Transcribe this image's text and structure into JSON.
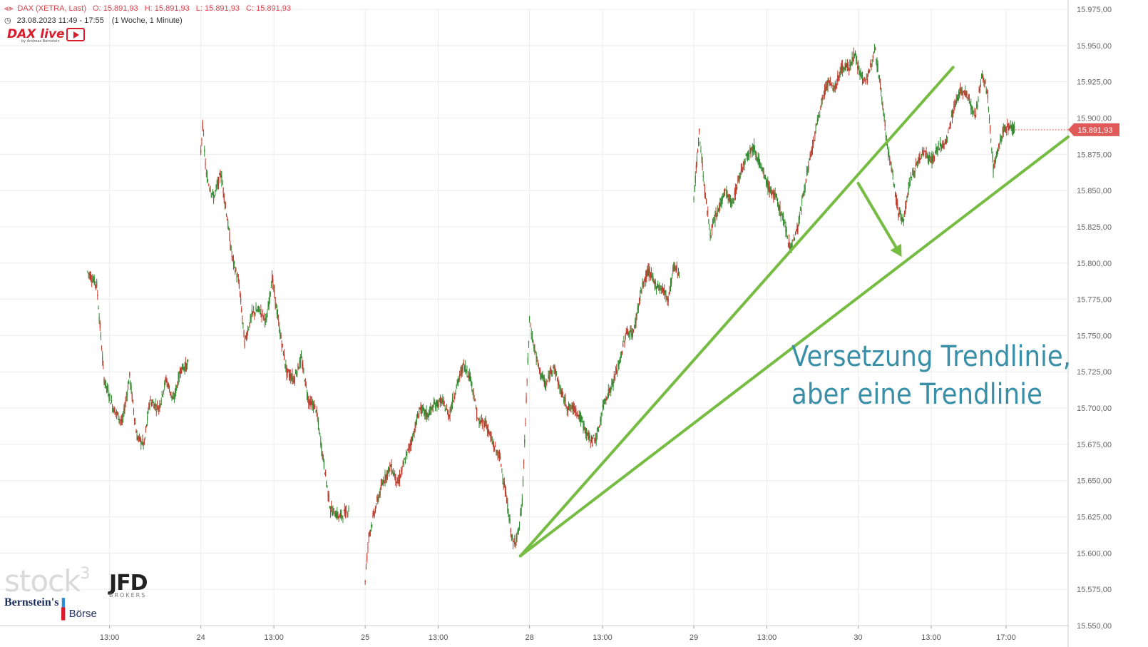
{
  "header": {
    "instrument": "DAX (XETRA, Last)",
    "ohlc": [
      "O: 15.891,93",
      "H: 15.891,93",
      "L: 15.891,93",
      "C: 15.891,93"
    ],
    "period": "23.08.2023 11:49 - 17:55",
    "interval": "(1 Woche, 1 Minute)",
    "clock_icon": "clock-icon",
    "candle_icon": "candlestick-icon"
  },
  "branding": {
    "dax_live": "DAX live",
    "dax_live_sub": "by Andreas Bernstein",
    "stock3": "stock",
    "stock3_sup": "3",
    "jfd": "JFD",
    "jfd_sub": "BROKERS",
    "bernstein": "Bernstein's",
    "boerse": "Börse"
  },
  "chart_data": {
    "type": "candlestick",
    "title": "",
    "ylim": [
      15550,
      15975
    ],
    "y_ticks": [
      "15.975,00",
      "15.950,00",
      "15.925,00",
      "15.900,00",
      "15.875,00",
      "15.850,00",
      "15.825,00",
      "15.800,00",
      "15.775,00",
      "15.750,00",
      "15.725,00",
      "15.700,00",
      "15.675,00",
      "15.650,00",
      "15.625,00",
      "15.600,00",
      "15.575,00",
      "15.550,00"
    ],
    "x_ticks": [
      {
        "label": "13:00",
        "t": 6.0
      },
      {
        "label": "24",
        "t": 11.0
      },
      {
        "label": "13:00",
        "t": 15.0
      },
      {
        "label": "25",
        "t": 20.0
      },
      {
        "label": "13:00",
        "t": 24.0
      },
      {
        "label": "28",
        "t": 29.0
      },
      {
        "label": "13:00",
        "t": 33.0
      },
      {
        "label": "29",
        "t": 38.0
      },
      {
        "label": "13:00",
        "t": 42.0
      },
      {
        "label": "30",
        "t": 47.0
      },
      {
        "label": "13:00",
        "t": 51.0
      },
      {
        "label": "17:00",
        "t": 55.1
      }
    ],
    "last_price": 15891.93,
    "last_price_label": "15.891,93",
    "up_color": "#2e8b2e",
    "down_color": "#c0392b",
    "trendline_color": "#76bc43",
    "annotation_color": "#3a8fa8",
    "price_path": [
      {
        "t": 4.8,
        "v": 15794
      },
      {
        "t": 5.3,
        "v": 15785
      },
      {
        "t": 5.7,
        "v": 15720
      },
      {
        "t": 6.2,
        "v": 15700
      },
      {
        "t": 6.7,
        "v": 15690
      },
      {
        "t": 7.1,
        "v": 15722
      },
      {
        "t": 7.5,
        "v": 15680
      },
      {
        "t": 7.9,
        "v": 15675
      },
      {
        "t": 8.2,
        "v": 15705
      },
      {
        "t": 8.7,
        "v": 15700
      },
      {
        "t": 9.1,
        "v": 15720
      },
      {
        "t": 9.5,
        "v": 15705
      },
      {
        "t": 9.9,
        "v": 15727
      },
      {
        "t": 10.3,
        "v": 15730
      },
      {
        "t": 11.0,
        "v": 15877
      },
      {
        "t": 11.1,
        "v": 15895
      },
      {
        "t": 11.3,
        "v": 15860
      },
      {
        "t": 11.7,
        "v": 15845
      },
      {
        "t": 12.1,
        "v": 15862
      },
      {
        "t": 12.4,
        "v": 15835
      },
      {
        "t": 12.7,
        "v": 15805
      },
      {
        "t": 13.1,
        "v": 15785
      },
      {
        "t": 13.4,
        "v": 15745
      },
      {
        "t": 13.8,
        "v": 15765
      },
      {
        "t": 14.2,
        "v": 15768
      },
      {
        "t": 14.6,
        "v": 15760
      },
      {
        "t": 14.9,
        "v": 15790
      },
      {
        "t": 15.3,
        "v": 15755
      },
      {
        "t": 15.7,
        "v": 15725
      },
      {
        "t": 16.1,
        "v": 15720
      },
      {
        "t": 16.5,
        "v": 15734
      },
      {
        "t": 16.9,
        "v": 15705
      },
      {
        "t": 17.3,
        "v": 15700
      },
      {
        "t": 17.7,
        "v": 15665
      },
      {
        "t": 18.1,
        "v": 15630
      },
      {
        "t": 18.6,
        "v": 15625
      },
      {
        "t": 19.1,
        "v": 15630
      },
      {
        "t": 20.0,
        "v": 15582
      },
      {
        "t": 20.2,
        "v": 15612
      },
      {
        "t": 20.6,
        "v": 15633
      },
      {
        "t": 21.0,
        "v": 15650
      },
      {
        "t": 21.4,
        "v": 15660
      },
      {
        "t": 21.8,
        "v": 15648
      },
      {
        "t": 22.2,
        "v": 15665
      },
      {
        "t": 22.6,
        "v": 15680
      },
      {
        "t": 23.0,
        "v": 15700
      },
      {
        "t": 23.4,
        "v": 15695
      },
      {
        "t": 23.8,
        "v": 15702
      },
      {
        "t": 24.2,
        "v": 15705
      },
      {
        "t": 24.6,
        "v": 15695
      },
      {
        "t": 25.0,
        "v": 15715
      },
      {
        "t": 25.4,
        "v": 15730
      },
      {
        "t": 25.8,
        "v": 15720
      },
      {
        "t": 26.2,
        "v": 15690
      },
      {
        "t": 26.6,
        "v": 15690
      },
      {
        "t": 27.0,
        "v": 15675
      },
      {
        "t": 27.4,
        "v": 15665
      },
      {
        "t": 27.8,
        "v": 15632
      },
      {
        "t": 28.1,
        "v": 15605
      },
      {
        "t": 28.4,
        "v": 15615
      },
      {
        "t": 28.6,
        "v": 15635
      },
      {
        "t": 29.0,
        "v": 15760
      },
      {
        "t": 29.2,
        "v": 15745
      },
      {
        "t": 29.5,
        "v": 15728
      },
      {
        "t": 29.9,
        "v": 15715
      },
      {
        "t": 30.3,
        "v": 15730
      },
      {
        "t": 30.7,
        "v": 15712
      },
      {
        "t": 31.1,
        "v": 15700
      },
      {
        "t": 31.5,
        "v": 15700
      },
      {
        "t": 31.9,
        "v": 15690
      },
      {
        "t": 32.3,
        "v": 15678
      },
      {
        "t": 32.7,
        "v": 15680
      },
      {
        "t": 33.1,
        "v": 15705
      },
      {
        "t": 33.5,
        "v": 15715
      },
      {
        "t": 33.9,
        "v": 15730
      },
      {
        "t": 34.3,
        "v": 15752
      },
      {
        "t": 34.7,
        "v": 15752
      },
      {
        "t": 35.1,
        "v": 15780
      },
      {
        "t": 35.5,
        "v": 15795
      },
      {
        "t": 35.9,
        "v": 15785
      },
      {
        "t": 36.3,
        "v": 15782
      },
      {
        "t": 36.6,
        "v": 15775
      },
      {
        "t": 36.9,
        "v": 15798
      },
      {
        "t": 37.2,
        "v": 15793
      },
      {
        "t": 38.0,
        "v": 15845
      },
      {
        "t": 38.3,
        "v": 15890
      },
      {
        "t": 38.6,
        "v": 15850
      },
      {
        "t": 38.9,
        "v": 15820
      },
      {
        "t": 39.3,
        "v": 15835
      },
      {
        "t": 39.7,
        "v": 15850
      },
      {
        "t": 40.1,
        "v": 15840
      },
      {
        "t": 40.5,
        "v": 15860
      },
      {
        "t": 40.9,
        "v": 15875
      },
      {
        "t": 41.3,
        "v": 15880
      },
      {
        "t": 41.7,
        "v": 15865
      },
      {
        "t": 42.1,
        "v": 15852
      },
      {
        "t": 42.5,
        "v": 15845
      },
      {
        "t": 42.9,
        "v": 15830
      },
      {
        "t": 43.3,
        "v": 15810
      },
      {
        "t": 43.7,
        "v": 15825
      },
      {
        "t": 44.1,
        "v": 15855
      },
      {
        "t": 44.5,
        "v": 15880
      },
      {
        "t": 44.9,
        "v": 15905
      },
      {
        "t": 45.3,
        "v": 15925
      },
      {
        "t": 45.7,
        "v": 15920
      },
      {
        "t": 46.1,
        "v": 15935
      },
      {
        "t": 46.5,
        "v": 15935
      },
      {
        "t": 46.8,
        "v": 15945
      },
      {
        "t": 47.1,
        "v": 15930
      },
      {
        "t": 47.5,
        "v": 15925
      },
      {
        "t": 47.9,
        "v": 15950
      },
      {
        "t": 48.3,
        "v": 15915
      },
      {
        "t": 48.6,
        "v": 15880
      },
      {
        "t": 48.9,
        "v": 15860
      },
      {
        "t": 49.2,
        "v": 15835
      },
      {
        "t": 49.5,
        "v": 15830
      },
      {
        "t": 49.8,
        "v": 15855
      },
      {
        "t": 50.2,
        "v": 15868
      },
      {
        "t": 50.6,
        "v": 15878
      },
      {
        "t": 51.0,
        "v": 15870
      },
      {
        "t": 51.4,
        "v": 15880
      },
      {
        "t": 51.8,
        "v": 15882
      },
      {
        "t": 52.2,
        "v": 15905
      },
      {
        "t": 52.6,
        "v": 15920
      },
      {
        "t": 53.0,
        "v": 15915
      },
      {
        "t": 53.4,
        "v": 15900
      },
      {
        "t": 53.8,
        "v": 15930
      },
      {
        "t": 54.1,
        "v": 15915
      },
      {
        "t": 54.4,
        "v": 15865
      },
      {
        "t": 54.7,
        "v": 15880
      },
      {
        "t": 55.0,
        "v": 15893
      },
      {
        "t": 55.3,
        "v": 15895
      },
      {
        "t": 55.6,
        "v": 15892
      }
    ],
    "trendlines": [
      {
        "name": "trendline-steep",
        "from": {
          "t": 28.5,
          "v": 15598
        },
        "to": {
          "t": 52.2,
          "v": 15935
        }
      },
      {
        "name": "trendline-shifted",
        "from": {
          "t": 28.5,
          "v": 15598
        },
        "to": {
          "t": 58.5,
          "v": 15887
        }
      }
    ],
    "shift_arrow": {
      "from": {
        "t": 47.0,
        "v": 15855
      },
      "to": {
        "t": 49.3,
        "v": 15806
      }
    },
    "annotation_lines": [
      "Versetzung Trendlinie,",
      "aber eine Trendlinie"
    ]
  }
}
